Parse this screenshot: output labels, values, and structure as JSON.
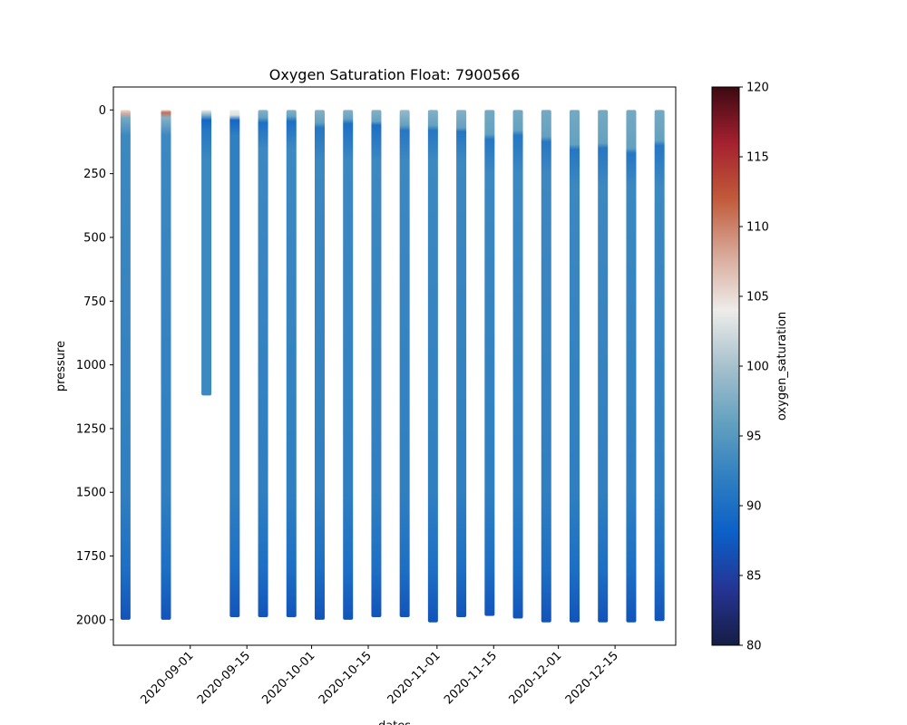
{
  "chart_data": {
    "type": "scatter",
    "title": "Oxygen Saturation Float: 7900566",
    "xlabel": "dates",
    "ylabel": "pressure",
    "colorbar_label": "oxygen_saturation",
    "grid": false,
    "y_inverted": true,
    "ylim": [
      2100,
      -90
    ],
    "xlim": [
      "2020-08-13",
      "2020-12-30"
    ],
    "x_ticks": [
      "2020-09-01",
      "2020-09-15",
      "2020-10-01",
      "2020-10-15",
      "2020-11-01",
      "2020-11-15",
      "2020-12-01",
      "2020-12-15"
    ],
    "y_ticks": [
      0,
      250,
      500,
      750,
      1000,
      1250,
      1500,
      1750,
      2000
    ],
    "colorbar": {
      "colormap": "balance",
      "range": [
        80,
        120
      ],
      "ticks": [
        80,
        85,
        90,
        95,
        100,
        105,
        110,
        115,
        120
      ],
      "colors": [
        "#151d44",
        "#253494",
        "#0b5fc7",
        "#2f7fc1",
        "#64a1c0",
        "#a6c1cd",
        "#eeecea",
        "#d8a898",
        "#c15a3a",
        "#a5202f",
        "#3c0912"
      ]
    },
    "profiles": [
      {
        "date": "2020-08-16",
        "top_pressure": 0,
        "bottom_pressure": 2000,
        "levels": [
          {
            "p": 0,
            "sat": 105
          },
          {
            "p": 15,
            "sat": 108
          },
          {
            "p": 30,
            "sat": 97
          },
          {
            "p": 100,
            "sat": 93
          },
          {
            "p": 1500,
            "sat": 92
          },
          {
            "p": 1800,
            "sat": 90
          },
          {
            "p": 2000,
            "sat": 87
          }
        ]
      },
      {
        "date": "2020-08-26",
        "top_pressure": 0,
        "bottom_pressure": 2000,
        "levels": [
          {
            "p": 0,
            "sat": 105
          },
          {
            "p": 10,
            "sat": 111
          },
          {
            "p": 30,
            "sat": 98
          },
          {
            "p": 100,
            "sat": 93
          },
          {
            "p": 1500,
            "sat": 92
          },
          {
            "p": 1800,
            "sat": 90
          },
          {
            "p": 2000,
            "sat": 87
          }
        ]
      },
      {
        "date": "2020-09-05",
        "top_pressure": 0,
        "bottom_pressure": 1120,
        "levels": [
          {
            "p": 0,
            "sat": 104
          },
          {
            "p": 20,
            "sat": 98
          },
          {
            "p": 40,
            "sat": 89
          },
          {
            "p": 80,
            "sat": 91
          },
          {
            "p": 200,
            "sat": 93
          },
          {
            "p": 1120,
            "sat": 93
          }
        ]
      },
      {
        "date": "2020-09-12",
        "top_pressure": 0,
        "bottom_pressure": 1990,
        "levels": [
          {
            "p": 0,
            "sat": 104
          },
          {
            "p": 20,
            "sat": 103
          },
          {
            "p": 40,
            "sat": 89
          },
          {
            "p": 100,
            "sat": 92
          },
          {
            "p": 1500,
            "sat": 92
          },
          {
            "p": 1800,
            "sat": 90
          },
          {
            "p": 1990,
            "sat": 87
          }
        ]
      },
      {
        "date": "2020-09-19",
        "top_pressure": 0,
        "bottom_pressure": 1990,
        "levels": [
          {
            "p": 0,
            "sat": 98
          },
          {
            "p": 30,
            "sat": 96
          },
          {
            "p": 50,
            "sat": 90
          },
          {
            "p": 150,
            "sat": 93
          },
          {
            "p": 1500,
            "sat": 92
          },
          {
            "p": 1800,
            "sat": 90
          },
          {
            "p": 1990,
            "sat": 87
          }
        ]
      },
      {
        "date": "2020-09-26",
        "top_pressure": 0,
        "bottom_pressure": 1990,
        "levels": [
          {
            "p": 0,
            "sat": 98
          },
          {
            "p": 25,
            "sat": 96
          },
          {
            "p": 45,
            "sat": 90
          },
          {
            "p": 150,
            "sat": 93
          },
          {
            "p": 1500,
            "sat": 92
          },
          {
            "p": 1800,
            "sat": 90
          },
          {
            "p": 1990,
            "sat": 87
          }
        ]
      },
      {
        "date": "2020-10-03",
        "top_pressure": 0,
        "bottom_pressure": 2000,
        "levels": [
          {
            "p": 0,
            "sat": 98
          },
          {
            "p": 50,
            "sat": 96
          },
          {
            "p": 70,
            "sat": 91
          },
          {
            "p": 200,
            "sat": 93
          },
          {
            "p": 1500,
            "sat": 92
          },
          {
            "p": 1800,
            "sat": 90
          },
          {
            "p": 2000,
            "sat": 87
          }
        ]
      },
      {
        "date": "2020-10-10",
        "top_pressure": 0,
        "bottom_pressure": 2000,
        "levels": [
          {
            "p": 0,
            "sat": 98
          },
          {
            "p": 35,
            "sat": 96
          },
          {
            "p": 55,
            "sat": 90
          },
          {
            "p": 200,
            "sat": 93
          },
          {
            "p": 1500,
            "sat": 92
          },
          {
            "p": 1800,
            "sat": 90
          },
          {
            "p": 2000,
            "sat": 87
          }
        ]
      },
      {
        "date": "2020-10-17",
        "top_pressure": 0,
        "bottom_pressure": 1990,
        "levels": [
          {
            "p": 0,
            "sat": 98
          },
          {
            "p": 45,
            "sat": 96
          },
          {
            "p": 60,
            "sat": 90
          },
          {
            "p": 200,
            "sat": 93
          },
          {
            "p": 1500,
            "sat": 92
          },
          {
            "p": 1800,
            "sat": 90
          },
          {
            "p": 1990,
            "sat": 87
          }
        ]
      },
      {
        "date": "2020-10-24",
        "top_pressure": 0,
        "bottom_pressure": 1990,
        "levels": [
          {
            "p": 0,
            "sat": 99
          },
          {
            "p": 60,
            "sat": 96
          },
          {
            "p": 80,
            "sat": 91
          },
          {
            "p": 200,
            "sat": 93
          },
          {
            "p": 1500,
            "sat": 92
          },
          {
            "p": 1800,
            "sat": 90
          },
          {
            "p": 1990,
            "sat": 87
          }
        ]
      },
      {
        "date": "2020-10-31",
        "top_pressure": 0,
        "bottom_pressure": 2010,
        "levels": [
          {
            "p": 0,
            "sat": 98
          },
          {
            "p": 60,
            "sat": 96
          },
          {
            "p": 80,
            "sat": 91
          },
          {
            "p": 200,
            "sat": 93
          },
          {
            "p": 1500,
            "sat": 92
          },
          {
            "p": 1800,
            "sat": 90
          },
          {
            "p": 2010,
            "sat": 87
          }
        ]
      },
      {
        "date": "2020-11-07",
        "top_pressure": 0,
        "bottom_pressure": 1990,
        "levels": [
          {
            "p": 0,
            "sat": 98
          },
          {
            "p": 70,
            "sat": 96
          },
          {
            "p": 85,
            "sat": 91
          },
          {
            "p": 200,
            "sat": 93
          },
          {
            "p": 1500,
            "sat": 92
          },
          {
            "p": 1800,
            "sat": 90
          },
          {
            "p": 1990,
            "sat": 87
          }
        ]
      },
      {
        "date": "2020-11-14",
        "top_pressure": 0,
        "bottom_pressure": 1985,
        "levels": [
          {
            "p": 0,
            "sat": 97
          },
          {
            "p": 95,
            "sat": 96
          },
          {
            "p": 115,
            "sat": 91
          },
          {
            "p": 250,
            "sat": 93
          },
          {
            "p": 1500,
            "sat": 92
          },
          {
            "p": 1800,
            "sat": 90
          },
          {
            "p": 1985,
            "sat": 87
          }
        ]
      },
      {
        "date": "2020-11-21",
        "top_pressure": 0,
        "bottom_pressure": 1995,
        "levels": [
          {
            "p": 0,
            "sat": 97
          },
          {
            "p": 80,
            "sat": 96
          },
          {
            "p": 100,
            "sat": 91
          },
          {
            "p": 250,
            "sat": 93
          },
          {
            "p": 1500,
            "sat": 92
          },
          {
            "p": 1800,
            "sat": 90
          },
          {
            "p": 1995,
            "sat": 87
          }
        ]
      },
      {
        "date": "2020-11-28",
        "top_pressure": 0,
        "bottom_pressure": 2010,
        "levels": [
          {
            "p": 0,
            "sat": 97
          },
          {
            "p": 105,
            "sat": 96
          },
          {
            "p": 125,
            "sat": 91
          },
          {
            "p": 250,
            "sat": 93
          },
          {
            "p": 1500,
            "sat": 92
          },
          {
            "p": 1800,
            "sat": 90
          },
          {
            "p": 2010,
            "sat": 87
          }
        ]
      },
      {
        "date": "2020-12-05",
        "top_pressure": 0,
        "bottom_pressure": 2010,
        "levels": [
          {
            "p": 0,
            "sat": 97
          },
          {
            "p": 135,
            "sat": 96
          },
          {
            "p": 155,
            "sat": 91
          },
          {
            "p": 300,
            "sat": 93
          },
          {
            "p": 1500,
            "sat": 92
          },
          {
            "p": 1800,
            "sat": 90
          },
          {
            "p": 2010,
            "sat": 87
          }
        ]
      },
      {
        "date": "2020-12-12",
        "top_pressure": 0,
        "bottom_pressure": 2010,
        "levels": [
          {
            "p": 0,
            "sat": 97
          },
          {
            "p": 130,
            "sat": 96
          },
          {
            "p": 150,
            "sat": 91
          },
          {
            "p": 300,
            "sat": 93
          },
          {
            "p": 1500,
            "sat": 92
          },
          {
            "p": 1800,
            "sat": 90
          },
          {
            "p": 2010,
            "sat": 87
          }
        ]
      },
      {
        "date": "2020-12-19",
        "top_pressure": 0,
        "bottom_pressure": 2010,
        "levels": [
          {
            "p": 0,
            "sat": 97
          },
          {
            "p": 150,
            "sat": 96
          },
          {
            "p": 170,
            "sat": 91
          },
          {
            "p": 300,
            "sat": 93
          },
          {
            "p": 1500,
            "sat": 92
          },
          {
            "p": 1800,
            "sat": 90
          },
          {
            "p": 2010,
            "sat": 87
          }
        ]
      },
      {
        "date": "2020-12-26",
        "top_pressure": 0,
        "bottom_pressure": 2005,
        "levels": [
          {
            "p": 0,
            "sat": 97
          },
          {
            "p": 120,
            "sat": 96
          },
          {
            "p": 140,
            "sat": 91
          },
          {
            "p": 300,
            "sat": 93
          },
          {
            "p": 1500,
            "sat": 92
          },
          {
            "p": 1800,
            "sat": 90
          },
          {
            "p": 2005,
            "sat": 87
          }
        ]
      }
    ]
  }
}
